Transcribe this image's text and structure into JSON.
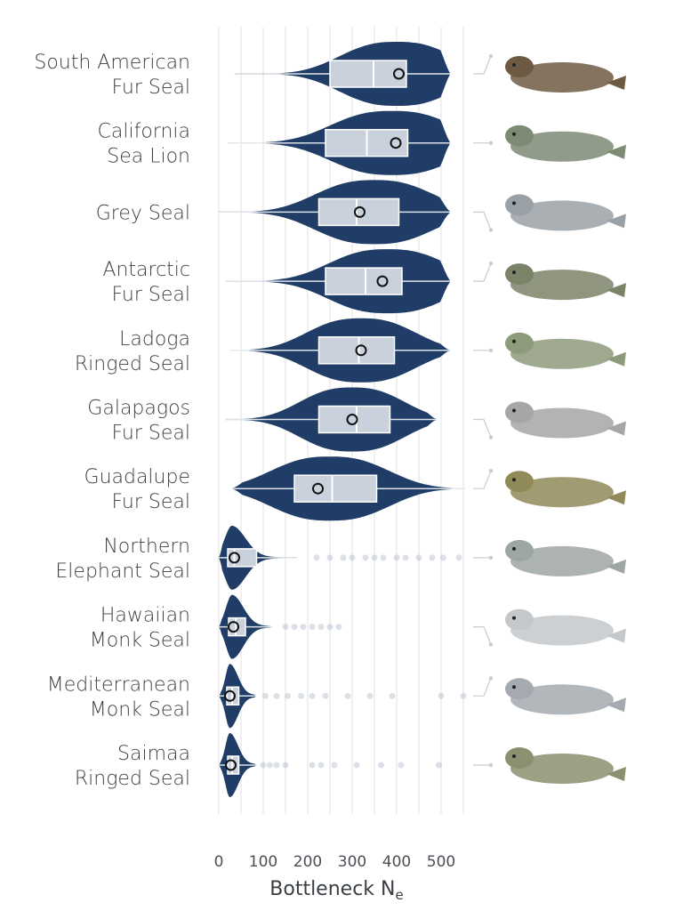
{
  "chart_data": {
    "type": "violin",
    "xlabel": "Bottleneck N",
    "xlabel_sub": "e",
    "xlim": [
      0,
      560
    ],
    "xticks": [
      0,
      100,
      200,
      300,
      400,
      500
    ],
    "xtick_labels": [
      "0",
      "100",
      "200",
      "300",
      "400",
      "500"
    ],
    "grid": true,
    "colors": {
      "violin": "#1f3d66",
      "box": "#c9d1dd"
    },
    "species": [
      {
        "name": [
          "South American",
          "Fur Seal"
        ],
        "min": 35,
        "q1": 250,
        "median": 348,
        "q3": 422,
        "max": 520,
        "mean": 405,
        "mode": 400,
        "spread": 120,
        "shape": "wide",
        "outliers": [],
        "icon": "fur-seal-illustration"
      },
      {
        "name": [
          "California",
          "Sea Lion"
        ],
        "min": 20,
        "q1": 240,
        "median": 333,
        "q3": 425,
        "max": 520,
        "mean": 398,
        "mode": 390,
        "spread": 130,
        "shape": "wide",
        "outliers": [],
        "icon": "sea-lion-illustration"
      },
      {
        "name": [
          "Grey Seal"
        ],
        "min": 0,
        "q1": 225,
        "median": 310,
        "q3": 405,
        "max": 520,
        "mean": 317,
        "mode": 350,
        "spread": 125,
        "shape": "wide",
        "outliers": [],
        "icon": "grey-seal-illustration"
      },
      {
        "name": [
          "Antarctic",
          "Fur Seal"
        ],
        "min": 15,
        "q1": 240,
        "median": 330,
        "q3": 412,
        "max": 520,
        "mean": 368,
        "mode": 380,
        "spread": 125,
        "shape": "wide",
        "outliers": [],
        "icon": "antarctic-fur-seal-illustration"
      },
      {
        "name": [
          "Ladoga",
          "Ringed Seal"
        ],
        "min": 25,
        "q1": 225,
        "median": 315,
        "q3": 395,
        "max": 520,
        "mean": 320,
        "mode": 320,
        "spread": 115,
        "shape": "wide",
        "outliers": [],
        "icon": "ringed-seal-illustration"
      },
      {
        "name": [
          "Galapagos",
          "Fur Seal"
        ],
        "min": 15,
        "q1": 225,
        "median": 310,
        "q3": 385,
        "max": 490,
        "mean": 300,
        "mode": 300,
        "spread": 110,
        "shape": "wide",
        "outliers": [],
        "icon": "galapagos-fur-seal-illustration"
      },
      {
        "name": [
          "Guadalupe",
          "Fur Seal"
        ],
        "min": 30,
        "q1": 170,
        "median": 255,
        "q3": 355,
        "max": 555,
        "mean": 223,
        "mode": 250,
        "spread": 125,
        "shape": "wide",
        "outliers": [],
        "icon": "guadalupe-fur-seal-illustration"
      },
      {
        "name": [
          "Northern",
          "Elephant Seal"
        ],
        "min": 0,
        "q1": 20,
        "median": 35,
        "q3": 85,
        "max": 175,
        "mean": 35,
        "mode": 30,
        "spread": 30,
        "shape": "skewed",
        "outliers": [
          220,
          250,
          280,
          300,
          330,
          350,
          370,
          400,
          420,
          450,
          480,
          505,
          540
        ],
        "icon": "elephant-seal-illustration"
      },
      {
        "name": [
          "Hawaiian",
          "Monk Seal"
        ],
        "min": 0,
        "q1": 22,
        "median": 38,
        "q3": 60,
        "max": 120,
        "mean": 33,
        "mode": 30,
        "spread": 25,
        "shape": "skewed",
        "outliers": [
          150,
          170,
          190,
          210,
          230,
          250,
          270
        ],
        "icon": "monk-seal-illustration"
      },
      {
        "name": [
          "Mediterranean",
          "Monk Seal"
        ],
        "min": 0,
        "q1": 18,
        "median": 30,
        "q3": 45,
        "max": 85,
        "mean": 25,
        "mode": 25,
        "spread": 18,
        "shape": "skewed",
        "outliers": [
          105,
          130,
          155,
          185,
          210,
          240,
          290,
          340,
          390,
          500,
          550
        ],
        "icon": "mediterranean-monk-seal-illustration"
      },
      {
        "name": [
          "Saimaa",
          "Ringed Seal"
        ],
        "min": 0,
        "q1": 20,
        "median": 30,
        "q3": 45,
        "max": 85,
        "mean": 27,
        "mode": 25,
        "spread": 18,
        "shape": "skewed",
        "outliers": [
          100,
          115,
          130,
          150,
          210,
          230,
          260,
          310,
          365,
          410,
          495
        ],
        "icon": "saimaa-ringed-seal-illustration"
      }
    ]
  }
}
